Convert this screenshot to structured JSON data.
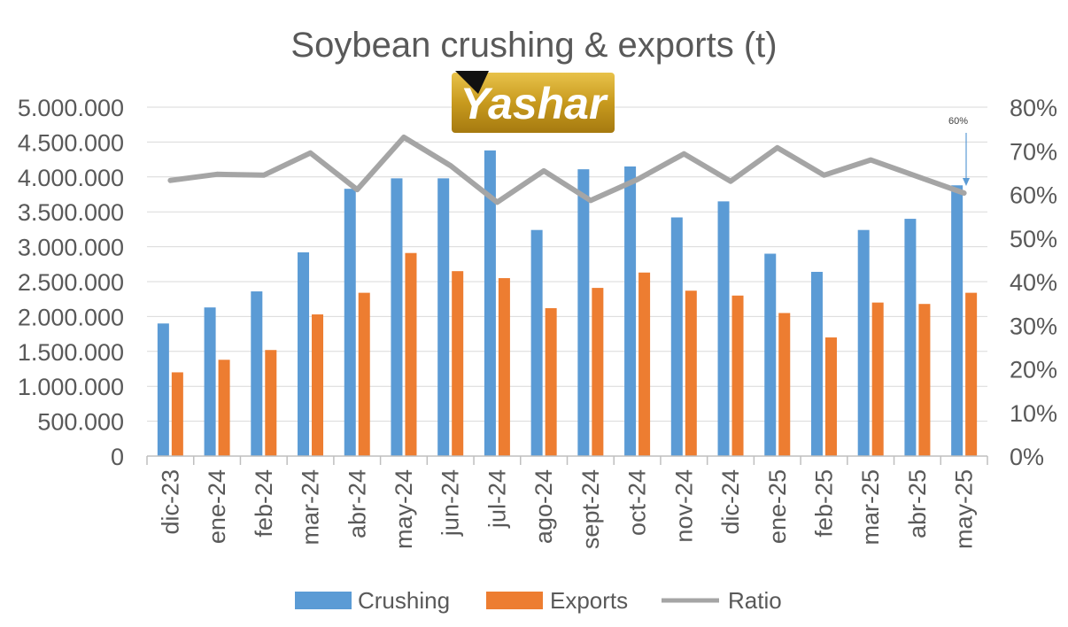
{
  "chart_data": {
    "type": "bar",
    "title": "Soybean crushing & exports (t)",
    "categories": [
      "dic-23",
      "ene-24",
      "feb-24",
      "mar-24",
      "abr-24",
      "may-24",
      "jun-24",
      "jul-24",
      "ago-24",
      "sept-24",
      "oct-24",
      "nov-24",
      "dic-24",
      "ene-25",
      "feb-25",
      "mar-25",
      "abr-25",
      "may-25"
    ],
    "series": [
      {
        "name": "Crushing",
        "kind": "bar",
        "axis": "left",
        "color": "#5B9BD5",
        "values": [
          1900000,
          2130000,
          2360000,
          2920000,
          3830000,
          3980000,
          3980000,
          4380000,
          3240000,
          4110000,
          4150000,
          3420000,
          3650000,
          2900000,
          2640000,
          3240000,
          3400000,
          3880000
        ]
      },
      {
        "name": "Exports",
        "kind": "bar",
        "axis": "left",
        "color": "#ED7D31",
        "values": [
          1200000,
          1380000,
          1520000,
          2030000,
          2340000,
          2910000,
          2650000,
          2550000,
          2120000,
          2410000,
          2630000,
          2370000,
          2300000,
          2050000,
          1700000,
          2200000,
          2180000,
          2340000
        ]
      },
      {
        "name": "Ratio",
        "kind": "line",
        "axis": "right",
        "color": "#A5A5A5",
        "values": [
          0.632,
          0.646,
          0.644,
          0.695,
          0.611,
          0.731,
          0.666,
          0.582,
          0.654,
          0.586,
          0.634,
          0.693,
          0.63,
          0.707,
          0.644,
          0.679,
          0.641,
          0.603
        ]
      }
    ],
    "y_left": {
      "min": 0,
      "max": 5000000,
      "step": 500000,
      "tick_labels": [
        "0",
        "500.000",
        "1.000.000",
        "1.500.000",
        "2.000.000",
        "2.500.000",
        "3.000.000",
        "3.500.000",
        "4.000.000",
        "4.500.000",
        "5.000.000"
      ]
    },
    "y_right": {
      "min": 0,
      "max": 0.8,
      "step": 0.1,
      "tick_labels": [
        "0%",
        "10%",
        "20%",
        "30%",
        "40%",
        "50%",
        "60%",
        "70%",
        "80%"
      ]
    },
    "grid": true,
    "legend": {
      "position": "bottom",
      "entries": [
        "Crushing",
        "Exports",
        "Ratio"
      ]
    },
    "annotation": {
      "text": "60%",
      "category": "may-25",
      "series": "Ratio"
    },
    "watermark": {
      "text": "Yashar"
    }
  }
}
